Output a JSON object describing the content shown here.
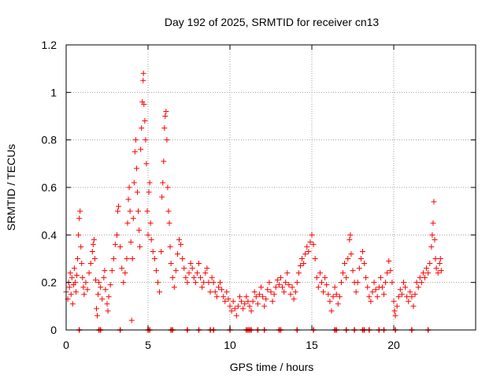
{
  "chart_data": {
    "type": "scatter",
    "title": "Day 192 of 2025, SRMTID for receiver cn13",
    "xlabel": "GPS time / hours",
    "ylabel": "SRMTID / TECUs",
    "xlim": [
      0,
      25
    ],
    "ylim": [
      0,
      1.2
    ],
    "xticks": [
      0,
      5,
      10,
      15,
      20
    ],
    "xtick_labels": [
      "0",
      "5",
      "10",
      "15",
      "20"
    ],
    "yticks": [
      0,
      0.2,
      0.4,
      0.6,
      0.8,
      1,
      1.2
    ],
    "ytick_labels": [
      "0",
      "0.2",
      "0.4",
      "0.6",
      "0.8",
      "1",
      "1.2"
    ],
    "grid": true,
    "marker": "plus",
    "series": [
      {
        "name": "SRMTID",
        "color": "#ff0000",
        "points": [
          [
            0.0,
            0.16
          ],
          [
            0.1,
            0.13
          ],
          [
            0.15,
            0.2
          ],
          [
            0.2,
            0.18
          ],
          [
            0.25,
            0.24
          ],
          [
            0.3,
            0.15
          ],
          [
            0.35,
            0.22
          ],
          [
            0.4,
            0.11
          ],
          [
            0.45,
            0.19
          ],
          [
            0.5,
            0.26
          ],
          [
            0.55,
            0.2
          ],
          [
            0.6,
            0.16
          ],
          [
            0.65,
            0.23
          ],
          [
            0.7,
            0.3
          ],
          [
            0.75,
            0.4
          ],
          [
            0.8,
            0.47
          ],
          [
            0.85,
            0.5
          ],
          [
            0.9,
            0.35
          ],
          [
            0.95,
            0.28
          ],
          [
            1.0,
            0.22
          ],
          [
            1.05,
            0.18
          ],
          [
            1.1,
            0.15
          ],
          [
            1.2,
            0.2
          ],
          [
            1.3,
            0.17
          ],
          [
            1.4,
            0.24
          ],
          [
            1.5,
            0.28
          ],
          [
            1.6,
            0.33
          ],
          [
            1.65,
            0.36
          ],
          [
            1.7,
            0.38
          ],
          [
            1.75,
            0.3
          ],
          [
            1.8,
            0.21
          ],
          [
            1.85,
            0.09
          ],
          [
            1.9,
            0.06
          ],
          [
            1.95,
            0.15
          ],
          [
            2.0,
            0.2
          ],
          [
            2.1,
            0.18
          ],
          [
            2.2,
            0.13
          ],
          [
            2.3,
            0.22
          ],
          [
            2.35,
            0.25
          ],
          [
            2.4,
            0.17
          ],
          [
            2.5,
            0.11
          ],
          [
            2.55,
            0.08
          ],
          [
            2.6,
            0.14
          ],
          [
            2.7,
            0.19
          ],
          [
            2.8,
            0.25
          ],
          [
            2.9,
            0.3
          ],
          [
            3.0,
            0.36
          ],
          [
            3.1,
            0.4
          ],
          [
            3.15,
            0.5
          ],
          [
            3.2,
            0.52
          ],
          [
            3.3,
            0.35
          ],
          [
            3.4,
            0.26
          ],
          [
            3.5,
            0.2
          ],
          [
            3.6,
            0.24
          ],
          [
            3.7,
            0.3
          ],
          [
            3.75,
            0.45
          ],
          [
            3.8,
            0.55
          ],
          [
            3.85,
            0.6
          ],
          [
            3.9,
            0.5
          ],
          [
            3.95,
            0.37
          ],
          [
            4.0,
            0.04
          ],
          [
            4.05,
            0.3
          ],
          [
            4.1,
            0.47
          ],
          [
            4.15,
            0.62
          ],
          [
            4.2,
            0.75
          ],
          [
            4.25,
            0.8
          ],
          [
            4.3,
            0.68
          ],
          [
            4.35,
            0.58
          ],
          [
            4.4,
            0.5
          ],
          [
            4.45,
            0.42
          ],
          [
            4.5,
            0.35
          ],
          [
            4.55,
            0.76
          ],
          [
            4.6,
            0.85
          ],
          [
            4.65,
            0.96
          ],
          [
            4.7,
            1.05
          ],
          [
            4.72,
            1.08
          ],
          [
            4.75,
            0.95
          ],
          [
            4.8,
            0.88
          ],
          [
            4.85,
            0.8
          ],
          [
            4.9,
            0.7
          ],
          [
            4.95,
            0.5
          ],
          [
            5.0,
            0.4
          ],
          [
            5.05,
            0.58
          ],
          [
            5.1,
            0.62
          ],
          [
            5.15,
            0.45
          ],
          [
            5.2,
            0.38
          ],
          [
            5.3,
            0.33
          ],
          [
            5.4,
            0.3
          ],
          [
            5.5,
            0.25
          ],
          [
            5.6,
            0.2
          ],
          [
            5.7,
            0.16
          ],
          [
            5.8,
            0.33
          ],
          [
            5.85,
            0.56
          ],
          [
            5.9,
            0.62
          ],
          [
            5.95,
            0.71
          ],
          [
            6.0,
            0.85
          ],
          [
            6.05,
            0.9
          ],
          [
            6.1,
            0.92
          ],
          [
            6.15,
            0.8
          ],
          [
            6.2,
            0.6
          ],
          [
            6.25,
            0.5
          ],
          [
            6.3,
            0.45
          ],
          [
            6.35,
            0.35
          ],
          [
            6.4,
            0.28
          ],
          [
            6.5,
            0.22
          ],
          [
            6.6,
            0.18
          ],
          [
            6.7,
            0.25
          ],
          [
            6.8,
            0.32
          ],
          [
            6.9,
            0.38
          ],
          [
            7.0,
            0.36
          ],
          [
            7.1,
            0.3
          ],
          [
            7.2,
            0.26
          ],
          [
            7.3,
            0.22
          ],
          [
            7.4,
            0.2
          ],
          [
            7.5,
            0.24
          ],
          [
            7.6,
            0.28
          ],
          [
            7.7,
            0.26
          ],
          [
            7.8,
            0.22
          ],
          [
            7.9,
            0.2
          ],
          [
            8.0,
            0.24
          ],
          [
            8.1,
            0.28
          ],
          [
            8.2,
            0.22
          ],
          [
            8.3,
            0.18
          ],
          [
            8.4,
            0.2
          ],
          [
            8.5,
            0.24
          ],
          [
            8.6,
            0.26
          ],
          [
            8.7,
            0.2
          ],
          [
            8.8,
            0.16
          ],
          [
            8.9,
            0.22
          ],
          [
            9.0,
            0.2
          ],
          [
            9.1,
            0.16
          ],
          [
            9.2,
            0.14
          ],
          [
            9.3,
            0.18
          ],
          [
            9.4,
            0.2
          ],
          [
            9.5,
            0.17
          ],
          [
            9.6,
            0.14
          ],
          [
            9.7,
            0.12
          ],
          [
            9.8,
            0.16
          ],
          [
            9.9,
            0.13
          ],
          [
            10.0,
            0.1
          ],
          [
            10.1,
            0.08
          ],
          [
            10.2,
            0.12
          ],
          [
            10.3,
            0.09
          ],
          [
            10.4,
            0.06
          ],
          [
            10.5,
            0.1
          ],
          [
            10.6,
            0.14
          ],
          [
            10.7,
            0.12
          ],
          [
            10.8,
            0.09
          ],
          [
            10.9,
            0.11
          ],
          [
            11.0,
            0.14
          ],
          [
            11.1,
            0.12
          ],
          [
            11.2,
            0.1
          ],
          [
            11.3,
            0.08
          ],
          [
            11.4,
            0.12
          ],
          [
            11.5,
            0.16
          ],
          [
            11.6,
            0.14
          ],
          [
            11.7,
            0.11
          ],
          [
            11.8,
            0.15
          ],
          [
            11.9,
            0.18
          ],
          [
            12.0,
            0.14
          ],
          [
            12.1,
            0.1
          ],
          [
            12.2,
            0.13
          ],
          [
            12.3,
            0.17
          ],
          [
            12.4,
            0.2
          ],
          [
            12.5,
            0.16
          ],
          [
            12.6,
            0.12
          ],
          [
            12.7,
            0.15
          ],
          [
            12.8,
            0.18
          ],
          [
            12.9,
            0.21
          ],
          [
            13.0,
            0.19
          ],
          [
            13.1,
            0.22
          ],
          [
            13.2,
            0.18
          ],
          [
            13.3,
            0.16
          ],
          [
            13.4,
            0.2
          ],
          [
            13.5,
            0.24
          ],
          [
            13.6,
            0.19
          ],
          [
            13.7,
            0.15
          ],
          [
            13.8,
            0.18
          ],
          [
            13.9,
            0.13
          ],
          [
            14.0,
            0.16
          ],
          [
            14.1,
            0.2
          ],
          [
            14.2,
            0.24
          ],
          [
            14.3,
            0.27
          ],
          [
            14.4,
            0.3
          ],
          [
            14.5,
            0.28
          ],
          [
            14.6,
            0.32
          ],
          [
            14.7,
            0.35
          ],
          [
            14.8,
            0.33
          ],
          [
            14.9,
            0.37
          ],
          [
            15.0,
            0.4
          ],
          [
            15.1,
            0.36
          ],
          [
            15.2,
            0.3
          ],
          [
            15.3,
            0.22
          ],
          [
            15.4,
            0.18
          ],
          [
            15.5,
            0.24
          ],
          [
            15.6,
            0.2
          ],
          [
            15.7,
            0.16
          ],
          [
            15.8,
            0.22
          ],
          [
            15.9,
            0.19
          ],
          [
            16.0,
            0.15
          ],
          [
            16.1,
            0.12
          ],
          [
            16.2,
            0.08
          ],
          [
            16.3,
            0.14
          ],
          [
            16.4,
            0.18
          ],
          [
            16.5,
            0.15
          ],
          [
            16.6,
            0.11
          ],
          [
            16.7,
            0.14
          ],
          [
            16.8,
            0.2
          ],
          [
            16.9,
            0.24
          ],
          [
            17.0,
            0.28
          ],
          [
            17.1,
            0.22
          ],
          [
            17.2,
            0.3
          ],
          [
            17.3,
            0.38
          ],
          [
            17.35,
            0.4
          ],
          [
            17.4,
            0.32
          ],
          [
            17.5,
            0.25
          ],
          [
            17.6,
            0.2
          ],
          [
            17.7,
            0.16
          ],
          [
            17.8,
            0.2
          ],
          [
            17.9,
            0.26
          ],
          [
            18.0,
            0.3
          ],
          [
            18.1,
            0.33
          ],
          [
            18.2,
            0.28
          ],
          [
            18.3,
            0.22
          ],
          [
            18.4,
            0.18
          ],
          [
            18.5,
            0.14
          ],
          [
            18.6,
            0.12
          ],
          [
            18.7,
            0.16
          ],
          [
            18.8,
            0.2
          ],
          [
            18.9,
            0.17
          ],
          [
            19.0,
            0.14
          ],
          [
            19.1,
            0.18
          ],
          [
            19.2,
            0.22
          ],
          [
            19.3,
            0.18
          ],
          [
            19.4,
            0.15
          ],
          [
            19.5,
            0.2
          ],
          [
            19.6,
            0.24
          ],
          [
            19.7,
            0.29
          ],
          [
            19.8,
            0.25
          ],
          [
            19.9,
            0.2
          ],
          [
            20.0,
            0.12
          ],
          [
            20.05,
            0.08
          ],
          [
            20.1,
            0.06
          ],
          [
            20.2,
            0.1
          ],
          [
            20.3,
            0.14
          ],
          [
            20.4,
            0.17
          ],
          [
            20.5,
            0.15
          ],
          [
            20.6,
            0.2
          ],
          [
            20.7,
            0.18
          ],
          [
            20.8,
            0.14
          ],
          [
            20.9,
            0.12
          ],
          [
            21.0,
            0.16
          ],
          [
            21.1,
            0.14
          ],
          [
            21.2,
            0.1
          ],
          [
            21.3,
            0.15
          ],
          [
            21.4,
            0.2
          ],
          [
            21.5,
            0.18
          ],
          [
            21.6,
            0.22
          ],
          [
            21.7,
            0.2
          ],
          [
            21.8,
            0.24
          ],
          [
            21.9,
            0.22
          ],
          [
            22.0,
            0.26
          ],
          [
            22.1,
            0.24
          ],
          [
            22.2,
            0.28
          ],
          [
            22.3,
            0.35
          ],
          [
            22.35,
            0.4
          ],
          [
            22.4,
            0.45
          ],
          [
            22.45,
            0.54
          ],
          [
            22.5,
            0.38
          ],
          [
            22.55,
            0.3
          ],
          [
            22.6,
            0.26
          ],
          [
            22.7,
            0.24
          ],
          [
            22.8,
            0.28
          ],
          [
            22.85,
            0.3
          ],
          [
            22.9,
            0.25
          ]
        ]
      }
    ],
    "zero_markers": [
      0.8,
      2.0,
      2.1,
      3.3,
      5.0,
      5.1,
      6.4,
      6.5,
      7.4,
      8.1,
      8.8,
      9.0,
      10.0,
      11.0,
      11.1,
      11.2,
      11.3,
      11.7,
      12.1,
      13.0,
      13.1,
      14.1,
      15.1,
      16.4,
      16.5,
      17.1,
      17.6,
      18.1,
      18.2,
      18.5,
      19.1,
      19.4,
      20.1,
      21.1,
      22.1
    ]
  }
}
